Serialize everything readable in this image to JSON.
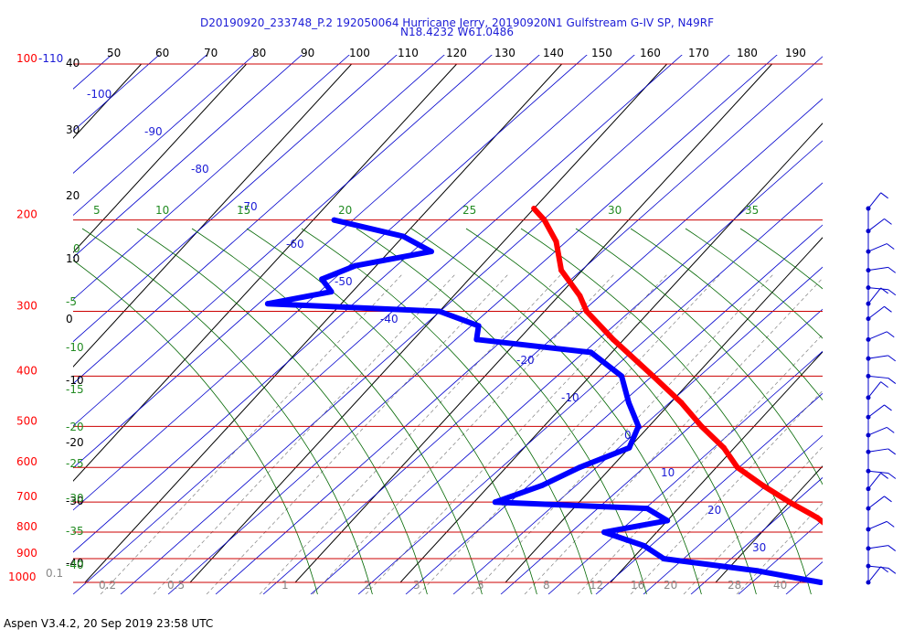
{
  "header": {
    "line1": "D20190920_233748_P.2 192050064 Hurricane Jerry, 20190920N1 Gulfstream G-IV SP, N49RF",
    "line2": "N18.4232 W61.0486"
  },
  "footer": {
    "text": "Aspen V3.4.2, 20 Sep 2019  23:58 UTC"
  },
  "colors": {
    "temperature": "#ff0000",
    "dewpoint": "#0000ff",
    "isobar": "#cc0000",
    "dry_adiabat": "#0000cc",
    "mixing_ratio": "#808080",
    "moist_adiabat": "#006600",
    "isotherm": "#000000",
    "pressure_label": "#ff0000"
  },
  "chart_data": {
    "type": "skew-t",
    "pressure_labels": [
      "100",
      "-110",
      "200",
      "300",
      "400",
      "500",
      "600",
      "700",
      "800",
      "900",
      "1000"
    ],
    "top_theta_labels": [
      "50",
      "60",
      "70",
      "80",
      "90",
      "100",
      "110",
      "120",
      "130",
      "140",
      "150",
      "160",
      "170",
      "180",
      "190"
    ],
    "isotherm_labels_left": [
      "40",
      "30",
      "20",
      "10",
      "0",
      "-10",
      "-20",
      "-30",
      "-40"
    ],
    "isotherm_labels_inner": [
      "-100",
      "-90",
      "-80",
      "-70",
      "-60",
      "-50",
      "-40",
      "-20",
      "-10",
      "0",
      "10",
      "20",
      "30"
    ],
    "moist_labels": [
      "5",
      "10",
      "15",
      "20",
      "25",
      "30",
      "35"
    ],
    "moist_left_labels": [
      "0",
      "-5",
      "-10",
      "-15",
      "-20",
      "-25",
      "-30",
      "-35",
      "-40"
    ],
    "mixing_ratio_labels": [
      "0.1",
      "0.2",
      "0.5",
      "1",
      "2",
      "3",
      "5",
      "8",
      "12",
      "16",
      "20",
      "28",
      "40"
    ],
    "temperature_profile": [
      {
        "p": 190,
        "t": -40
      },
      {
        "p": 200,
        "t": -38
      },
      {
        "p": 220,
        "t": -35
      },
      {
        "p": 250,
        "t": -32
      },
      {
        "p": 280,
        "t": -28
      },
      {
        "p": 300,
        "t": -26
      },
      {
        "p": 340,
        "t": -21
      },
      {
        "p": 400,
        "t": -14
      },
      {
        "p": 450,
        "t": -9
      },
      {
        "p": 500,
        "t": -5
      },
      {
        "p": 550,
        "t": -1
      },
      {
        "p": 600,
        "t": 2
      },
      {
        "p": 650,
        "t": 6
      },
      {
        "p": 700,
        "t": 10
      },
      {
        "p": 750,
        "t": 14
      },
      {
        "p": 800,
        "t": 17
      },
      {
        "p": 850,
        "t": 20
      },
      {
        "p": 900,
        "t": 23
      },
      {
        "p": 950,
        "t": 25
      },
      {
        "p": 1000,
        "t": 28
      }
    ],
    "dewpoint_profile": [
      {
        "p": 200,
        "t": -58
      },
      {
        "p": 215,
        "t": -50
      },
      {
        "p": 230,
        "t": -46
      },
      {
        "p": 245,
        "t": -52
      },
      {
        "p": 260,
        "t": -54
      },
      {
        "p": 275,
        "t": -52
      },
      {
        "p": 290,
        "t": -57
      },
      {
        "p": 300,
        "t": -40
      },
      {
        "p": 320,
        "t": -35
      },
      {
        "p": 340,
        "t": -34
      },
      {
        "p": 360,
        "t": -22
      },
      {
        "p": 400,
        "t": -17
      },
      {
        "p": 450,
        "t": -14
      },
      {
        "p": 500,
        "t": -11
      },
      {
        "p": 550,
        "t": -10
      },
      {
        "p": 600,
        "t": -13
      },
      {
        "p": 650,
        "t": -15
      },
      {
        "p": 700,
        "t": -18
      },
      {
        "p": 720,
        "t": -3
      },
      {
        "p": 760,
        "t": 0
      },
      {
        "p": 800,
        "t": -5
      },
      {
        "p": 850,
        "t": 0
      },
      {
        "p": 900,
        "t": 3
      },
      {
        "p": 950,
        "t": 13
      },
      {
        "p": 1000,
        "t": 20
      }
    ],
    "wind_barb_pressures": [
      190,
      210,
      230,
      250,
      270,
      290,
      310,
      340,
      370,
      400,
      440,
      480,
      520,
      560,
      610,
      660,
      720,
      790,
      860,
      930,
      1000
    ]
  }
}
